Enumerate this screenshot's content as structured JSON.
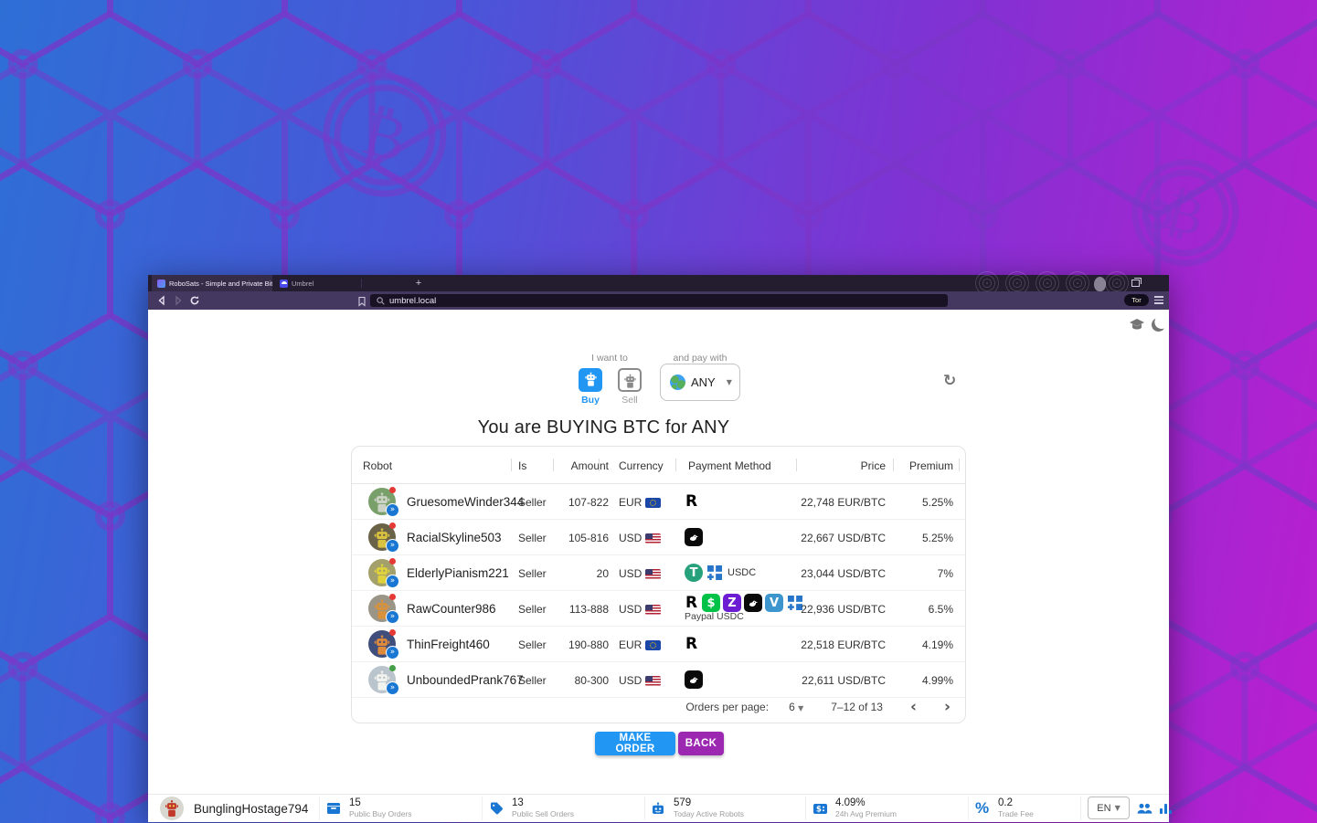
{
  "browser": {
    "tabs": [
      {
        "title": "RoboSats - Simple and Private Bit",
        "close": "×"
      },
      {
        "title": "Umbrel"
      }
    ],
    "new_tab": "+",
    "url": "umbrel.local",
    "tor_button": "Tor"
  },
  "page": {
    "want_label": "I want to",
    "buy_label": "Buy",
    "sell_label": "Sell",
    "pay_label": "and pay with",
    "pay_value": "ANY",
    "refresh_glyph": "↻",
    "title": "You are BUYING BTC for ANY",
    "table": {
      "headers": [
        "Robot",
        "Is",
        "Amount",
        "Currency",
        "Payment Method",
        "Price",
        "Premium"
      ],
      "rows": [
        {
          "name": "GruesomeWinder344",
          "is": "Seller",
          "amount": "107-822",
          "currency": "EUR",
          "flag": "eu",
          "payments": [
            "revolut"
          ],
          "payment_text": "",
          "payment_text_pos": "",
          "price": "22,748 EUR/BTC",
          "premium": "5.25%",
          "avatar_bg": "#79a06a",
          "robot_color": "#cdd2c6",
          "dot": "#e53935"
        },
        {
          "name": "RacialSkyline503",
          "is": "Seller",
          "amount": "105-816",
          "currency": "USD",
          "flag": "us",
          "payments": [
            "bird"
          ],
          "payment_text": "",
          "payment_text_pos": "",
          "price": "22,667 USD/BTC",
          "premium": "5.25%",
          "avatar_bg": "#6b6347",
          "robot_color": "#d9c23f",
          "dot": "#e53935"
        },
        {
          "name": "ElderlyPianism221",
          "is": "Seller",
          "amount": "20",
          "currency": "USD",
          "flag": "us",
          "payments": [
            "tether",
            "usdc"
          ],
          "payment_text": "USDC",
          "payment_text_pos": "inline",
          "price": "23,044 USD/BTC",
          "premium": "7%",
          "avatar_bg": "#a3a06b",
          "robot_color": "#e0d23c",
          "dot": "#e53935"
        },
        {
          "name": "RawCounter986",
          "is": "Seller",
          "amount": "113-888",
          "currency": "USD",
          "flag": "us",
          "payments": [
            "revolut",
            "cashapp",
            "zelle",
            "bird",
            "venmo",
            "usdc"
          ],
          "payment_text": "Paypal USDC",
          "payment_text_pos": "below",
          "price": "22,936 USD/BTC",
          "premium": "6.5%",
          "avatar_bg": "#9b9588",
          "robot_color": "#d8923c",
          "dot": "#e53935"
        },
        {
          "name": "ThinFreight460",
          "is": "Seller",
          "amount": "190-880",
          "currency": "EUR",
          "flag": "eu",
          "payments": [
            "revolut"
          ],
          "payment_text": "",
          "payment_text_pos": "",
          "price": "22,518 EUR/BTC",
          "premium": "4.19%",
          "avatar_bg": "#3f4e7a",
          "robot_color": "#e08a3c",
          "dot": "#e53935"
        },
        {
          "name": "UnboundedPrank767",
          "is": "Seller",
          "amount": "80-300",
          "currency": "USD",
          "flag": "us",
          "payments": [
            "bird"
          ],
          "payment_text": "",
          "payment_text_pos": "",
          "price": "22,611 USD/BTC",
          "premium": "4.99%",
          "avatar_bg": "#b9c4cc",
          "robot_color": "#f2f2ee",
          "dot": "#43a047"
        }
      ],
      "pagination": {
        "label": "Orders per page:",
        "per_page": "6",
        "range": "7–12 of 13",
        "prev": "‹",
        "next": "›"
      }
    },
    "make_order": "MAKE ORDER",
    "back": "BACK"
  },
  "bottom_bar": {
    "nickname": "BunglingHostage794",
    "stats": [
      {
        "icon": "inbox",
        "value": "15",
        "label": "Public Buy Orders"
      },
      {
        "icon": "tag",
        "value": "13",
        "label": "Public Sell Orders"
      },
      {
        "icon": "robot",
        "value": "579",
        "label": "Today Active Robots"
      },
      {
        "icon": "price-tag",
        "value": "4.09%",
        "label": "24h Avg Premium"
      },
      {
        "icon": "percent",
        "value": "0.2",
        "label": "Trade Fee"
      }
    ],
    "language": "EN"
  },
  "icons": {
    "revolut": "black letter R",
    "cashapp": "green square with $",
    "zelle": "purple square with Z",
    "bird": "black square with white bird",
    "venmo": "blue square with V",
    "usdc": "blue squares with plus",
    "tether": "teal circle with T",
    "graduation-cap": "learn link",
    "moon": "dark mode toggle"
  },
  "colors": {
    "accent_blue": "#2196f3",
    "accent_purple": "#9c27b0",
    "icon_blue": "#1976d2",
    "bg_gradient_left": "#2e6fd6",
    "bg_gradient_right": "#bb1ed0"
  }
}
